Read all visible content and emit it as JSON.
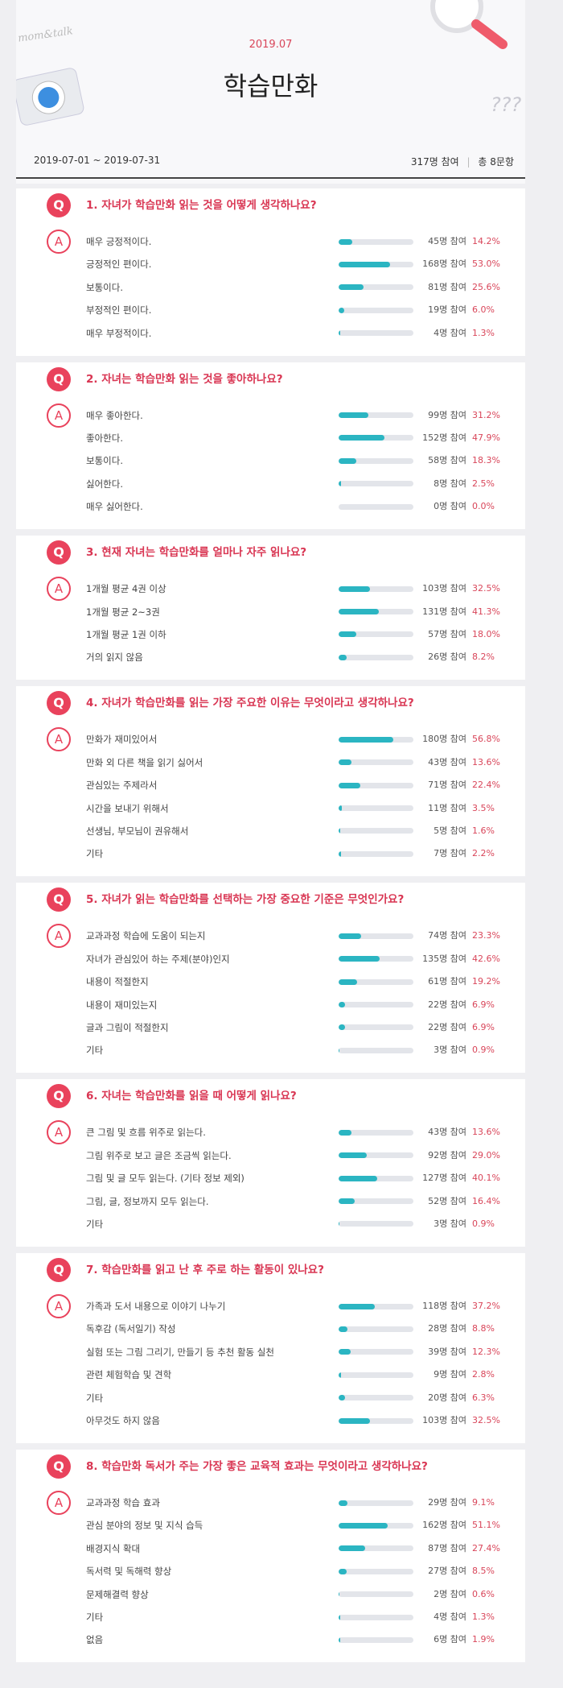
{
  "header": {
    "brand": "mom&talk",
    "month": "2019.07",
    "title": "학습만화",
    "deco": "???"
  },
  "summary": {
    "period": "2019-07-01 ~ 2019-07-31",
    "participants": "317명 참여",
    "questions_count": "총 8문항"
  },
  "q_marker": "Q",
  "a_marker": "A",
  "questions": [
    {
      "title": "1. 자녀가 학습만화 읽는 것을 어떻게 생각하나요?",
      "options": [
        {
          "label": "매우 긍정적이다.",
          "count_label": "45명 참여",
          "percent": 14.2,
          "percent_label": "14.2%"
        },
        {
          "label": "긍정적인 편이다.",
          "count_label": "168명 참여",
          "percent": 53.0,
          "percent_label": "53.0%"
        },
        {
          "label": "보통이다.",
          "count_label": "81명 참여",
          "percent": 25.6,
          "percent_label": "25.6%"
        },
        {
          "label": "부정적인 편이다.",
          "count_label": "19명 참여",
          "percent": 6.0,
          "percent_label": "6.0%"
        },
        {
          "label": "매우 부정적이다.",
          "count_label": "4명 참여",
          "percent": 1.3,
          "percent_label": "1.3%"
        }
      ]
    },
    {
      "title": "2. 자녀는 학습만화 읽는 것을 좋아하나요?",
      "options": [
        {
          "label": "매우 좋아한다.",
          "count_label": "99명 참여",
          "percent": 31.2,
          "percent_label": "31.2%"
        },
        {
          "label": "좋아한다.",
          "count_label": "152명 참여",
          "percent": 47.9,
          "percent_label": "47.9%"
        },
        {
          "label": "보통이다.",
          "count_label": "58명 참여",
          "percent": 18.3,
          "percent_label": "18.3%"
        },
        {
          "label": "싫어한다.",
          "count_label": "8명 참여",
          "percent": 2.5,
          "percent_label": "2.5%"
        },
        {
          "label": "매우 싫어한다.",
          "count_label": "0명 참여",
          "percent": 0.0,
          "percent_label": "0.0%"
        }
      ]
    },
    {
      "title": "3. 현재 자녀는 학습만화를 얼마나 자주 읽나요?",
      "options": [
        {
          "label": "1개월 평균 4권 이상",
          "count_label": "103명 참여",
          "percent": 32.5,
          "percent_label": "32.5%"
        },
        {
          "label": "1개월 평균 2~3권",
          "count_label": "131명 참여",
          "percent": 41.3,
          "percent_label": "41.3%"
        },
        {
          "label": "1개월 평균 1권 이하",
          "count_label": "57명 참여",
          "percent": 18.0,
          "percent_label": "18.0%"
        },
        {
          "label": "거의 읽지 않음",
          "count_label": "26명 참여",
          "percent": 8.2,
          "percent_label": "8.2%"
        }
      ]
    },
    {
      "title": "4. 자녀가 학습만화를 읽는 가장 주요한 이유는 무엇이라고 생각하나요?",
      "options": [
        {
          "label": "만화가 재미있어서",
          "count_label": "180명 참여",
          "percent": 56.8,
          "percent_label": "56.8%"
        },
        {
          "label": "만화 외 다른 책을 읽기 싫어서",
          "count_label": "43명 참여",
          "percent": 13.6,
          "percent_label": "13.6%"
        },
        {
          "label": "관심있는 주제라서",
          "count_label": "71명 참여",
          "percent": 22.4,
          "percent_label": "22.4%"
        },
        {
          "label": "시간을 보내기 위해서",
          "count_label": "11명 참여",
          "percent": 3.5,
          "percent_label": "3.5%"
        },
        {
          "label": "선생님, 부모님이 권유해서",
          "count_label": "5명 참여",
          "percent": 1.6,
          "percent_label": "1.6%"
        },
        {
          "label": "기타",
          "count_label": "7명 참여",
          "percent": 2.2,
          "percent_label": "2.2%"
        }
      ]
    },
    {
      "title": "5. 자녀가 읽는 학습만화를 선택하는 가장 중요한 기준은 무엇인가요?",
      "options": [
        {
          "label": "교과과정 학습에 도움이 되는지",
          "count_label": "74명 참여",
          "percent": 23.3,
          "percent_label": "23.3%"
        },
        {
          "label": "자녀가 관심있어 하는 주제(분야)인지",
          "count_label": "135명 참여",
          "percent": 42.6,
          "percent_label": "42.6%"
        },
        {
          "label": "내용이 적절한지",
          "count_label": "61명 참여",
          "percent": 19.2,
          "percent_label": "19.2%"
        },
        {
          "label": "내용이 재미있는지",
          "count_label": "22명 참여",
          "percent": 6.9,
          "percent_label": "6.9%"
        },
        {
          "label": "글과 그림이 적절한지",
          "count_label": "22명 참여",
          "percent": 6.9,
          "percent_label": "6.9%"
        },
        {
          "label": "기타",
          "count_label": "3명 참여",
          "percent": 0.9,
          "percent_label": "0.9%"
        }
      ]
    },
    {
      "title": "6. 자녀는 학습만화를 읽을 때 어떻게 읽나요?",
      "options": [
        {
          "label": "큰 그림 및 흐름 위주로 읽는다.",
          "count_label": "43명 참여",
          "percent": 13.6,
          "percent_label": "13.6%"
        },
        {
          "label": "그림 위주로 보고 글은 조금씩 읽는다.",
          "count_label": "92명 참여",
          "percent": 29.0,
          "percent_label": "29.0%"
        },
        {
          "label": "그림 및 글 모두 읽는다. (기타 정보 제외)",
          "count_label": "127명 참여",
          "percent": 40.1,
          "percent_label": "40.1%"
        },
        {
          "label": "그림, 글, 정보까지 모두 읽는다.",
          "count_label": "52명 참여",
          "percent": 16.4,
          "percent_label": "16.4%"
        },
        {
          "label": "기타",
          "count_label": "3명 참여",
          "percent": 0.9,
          "percent_label": "0.9%"
        }
      ]
    },
    {
      "title": "7. 학습만화를 읽고 난 후 주로 하는 활동이 있나요?",
      "options": [
        {
          "label": "가족과 도서 내용으로 이야기 나누기",
          "count_label": "118명 참여",
          "percent": 37.2,
          "percent_label": "37.2%"
        },
        {
          "label": "독후감 (독서일기) 작성",
          "count_label": "28명 참여",
          "percent": 8.8,
          "percent_label": "8.8%"
        },
        {
          "label": "실험 또는 그림 그리기, 만들기 등 추천 활동 실천",
          "count_label": "39명 참여",
          "percent": 12.3,
          "percent_label": "12.3%"
        },
        {
          "label": "관련 체험학습 및 견학",
          "count_label": "9명 참여",
          "percent": 2.8,
          "percent_label": "2.8%"
        },
        {
          "label": "기타",
          "count_label": "20명 참여",
          "percent": 6.3,
          "percent_label": "6.3%"
        },
        {
          "label": "아무것도 하지 않음",
          "count_label": "103명 참여",
          "percent": 32.5,
          "percent_label": "32.5%"
        }
      ]
    },
    {
      "title": "8. 학습만화 독서가 주는 가장 좋은 교육적 효과는 무엇이라고 생각하나요?",
      "options": [
        {
          "label": "교과과정 학습 효과",
          "count_label": "29명 참여",
          "percent": 9.1,
          "percent_label": "9.1%"
        },
        {
          "label": "관심 분야의 정보 및 지식 습득",
          "count_label": "162명 참여",
          "percent": 51.1,
          "percent_label": "51.1%"
        },
        {
          "label": "배경지식 확대",
          "count_label": "87명 참여",
          "percent": 27.4,
          "percent_label": "27.4%"
        },
        {
          "label": "독서력 및 독해력 향상",
          "count_label": "27명 참여",
          "percent": 8.5,
          "percent_label": "8.5%"
        },
        {
          "label": "문제해결력 향상",
          "count_label": "2명 참여",
          "percent": 0.6,
          "percent_label": "0.6%"
        },
        {
          "label": "기타",
          "count_label": "4명 참여",
          "percent": 1.3,
          "percent_label": "1.3%"
        },
        {
          "label": "없음",
          "count_label": "6명 참여",
          "percent": 1.9,
          "percent_label": "1.9%"
        }
      ]
    }
  ]
}
